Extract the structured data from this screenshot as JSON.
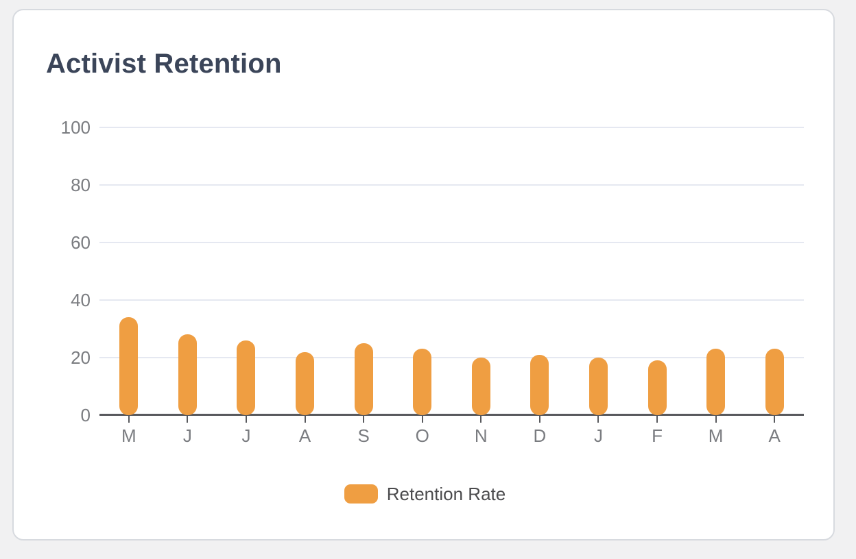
{
  "card": {
    "title": "Activist Retention"
  },
  "legend": {
    "label": "Retention Rate"
  },
  "colors": {
    "bar": "#EF9E42",
    "title": "#3B4559",
    "axis_label": "#7A7C80",
    "axis_line": "#58595D",
    "gridline": "#E5E8F1",
    "legend_text": "#4B4B4D",
    "card_bg": "#FFFFFF",
    "card_border": "#D7DADF",
    "page_bg": "#F1F1F2"
  },
  "chart_data": {
    "type": "bar",
    "title": "Activist Retention",
    "categories": [
      "M",
      "J",
      "J",
      "A",
      "S",
      "O",
      "N",
      "D",
      "J",
      "F",
      "M",
      "A"
    ],
    "series": [
      {
        "name": "Retention Rate",
        "values": [
          34,
          28,
          26,
          22,
          25,
          23,
          20,
          21,
          20,
          19,
          23,
          23
        ]
      }
    ],
    "xlabel": "",
    "ylabel": "",
    "ylim": [
      0,
      100
    ],
    "yticks": [
      0,
      20,
      40,
      60,
      80,
      100
    ],
    "grid": true,
    "legend_position": "bottom",
    "bar_color": "#EF9E42"
  }
}
